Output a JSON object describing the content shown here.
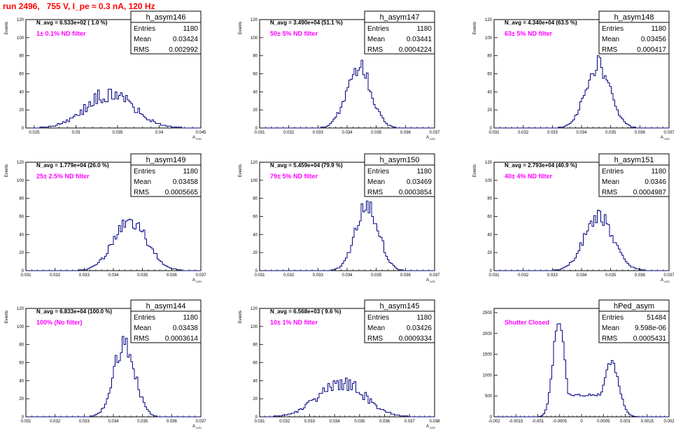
{
  "run_title": "run 2496,   755 V, I_pe ≈ 0.3 nA, 120 Hz",
  "colors": {
    "hist": "#000080",
    "title": "#ff0000",
    "filter": "#ff00ff",
    "axis": "#000000"
  },
  "stats_labels": {
    "entries": "Entries",
    "mean": "Mean",
    "rms": "RMS"
  },
  "chart_data": [
    {
      "type": "bar",
      "name": "h_asym146",
      "navg": "N_avg = 6.533e+02 ( 1.0 %)",
      "filter": "1± 0.1% ND filter",
      "entries": "1180",
      "mean": "0.03424",
      "rms": "0.002992",
      "xlabel": "A",
      "xlabel_sub": "LED",
      "ylabel": "Events",
      "xlim": [
        0.024,
        0.045
      ],
      "ylim": [
        0,
        120
      ],
      "xticks": [
        "0.025",
        "0.03",
        "0.035",
        "0.04",
        "0.045"
      ],
      "xtick_values": [
        0.025,
        0.03,
        0.035,
        0.04,
        0.045
      ],
      "yticks": [
        "0",
        "20",
        "40",
        "60",
        "80",
        "100",
        "120"
      ],
      "ytick_values": [
        0,
        20,
        40,
        60,
        80,
        100,
        120
      ],
      "peaks": [
        {
          "mu": 0.0341,
          "sigma": 0.0029,
          "amp": 38
        }
      ],
      "noise": 0.25,
      "seed": 146
    },
    {
      "type": "bar",
      "name": "h_asym147",
      "navg": "N_avg = 3.490e+04 (51.1 %)",
      "filter": "50± 5% ND filter",
      "entries": "1180",
      "mean": "0.03441",
      "rms": "0.0004224",
      "xlabel": "A",
      "xlabel_sub": "LED",
      "ylabel": "Events",
      "xlim": [
        0.031,
        0.037
      ],
      "ylim": [
        0,
        120
      ],
      "xticks": [
        "0.031",
        "0.032",
        "0.033",
        "0.034",
        "0.035",
        "0.036",
        "0.037"
      ],
      "xtick_values": [
        0.031,
        0.032,
        0.033,
        0.034,
        0.035,
        0.036,
        0.037
      ],
      "yticks": [
        "0",
        "20",
        "40",
        "60",
        "80",
        "100",
        "120"
      ],
      "ytick_values": [
        0,
        20,
        40,
        60,
        80,
        100,
        120
      ],
      "peaks": [
        {
          "mu": 0.0344,
          "sigma": 0.00042,
          "amp": 68
        }
      ],
      "noise": 0.15,
      "seed": 147
    },
    {
      "type": "bar",
      "name": "h_asym148",
      "navg": "N_avg = 4.340e+04 (63.5 %)",
      "filter": "63± 5% ND filter",
      "entries": "1180",
      "mean": "0.03456",
      "rms": "0.000417",
      "xlabel": "A",
      "xlabel_sub": "LED",
      "ylabel": "Events",
      "xlim": [
        0.031,
        0.037
      ],
      "ylim": [
        0,
        120
      ],
      "xticks": [
        "0.031",
        "0.032",
        "0.033",
        "0.034",
        "0.035",
        "0.036",
        "0.037"
      ],
      "xtick_values": [
        0.031,
        0.032,
        0.033,
        0.034,
        0.035,
        0.036,
        0.037
      ],
      "yticks": [
        "0",
        "20",
        "40",
        "60",
        "80",
        "100",
        "120"
      ],
      "ytick_values": [
        0,
        20,
        40,
        60,
        80,
        100,
        120
      ],
      "peaks": [
        {
          "mu": 0.03456,
          "sigma": 0.00042,
          "amp": 70
        }
      ],
      "noise": 0.15,
      "seed": 148
    },
    {
      "type": "bar",
      "name": "h_asym149",
      "navg": "N_avg = 1.779e+04 (26.0 %)",
      "filter": "25± 2.5% ND filter",
      "entries": "1180",
      "mean": "0.03458",
      "rms": "0.0005665",
      "xlabel": "A",
      "xlabel_sub": "LED",
      "ylabel": "Events",
      "xlim": [
        0.031,
        0.037
      ],
      "ylim": [
        0,
        120
      ],
      "xticks": [
        "0.031",
        "0.032",
        "0.033",
        "0.034",
        "0.035",
        "0.036",
        "0.037"
      ],
      "xtick_values": [
        0.031,
        0.032,
        0.033,
        0.034,
        0.035,
        0.036,
        0.037
      ],
      "yticks": [
        "0",
        "20",
        "40",
        "60",
        "80",
        "100",
        "120"
      ],
      "ytick_values": [
        0,
        20,
        40,
        60,
        80,
        100,
        120
      ],
      "peaks": [
        {
          "mu": 0.03458,
          "sigma": 0.00057,
          "amp": 55
        }
      ],
      "noise": 0.15,
      "seed": 149
    },
    {
      "type": "bar",
      "name": "h_asym150",
      "navg": "N_avg = 5.459e+04 (79.9 %)",
      "filter": "79± 5% ND filter",
      "entries": "1180",
      "mean": "0.03469",
      "rms": "0.0003854",
      "xlabel": "A",
      "xlabel_sub": "LED",
      "ylabel": "Events",
      "xlim": [
        0.031,
        0.037
      ],
      "ylim": [
        0,
        120
      ],
      "xticks": [
        "0.031",
        "0.032",
        "0.033",
        "0.034",
        "0.035",
        "0.036",
        "0.037"
      ],
      "xtick_values": [
        0.031,
        0.032,
        0.033,
        0.034,
        0.035,
        0.036,
        0.037
      ],
      "yticks": [
        "0",
        "20",
        "40",
        "60",
        "80",
        "100",
        "120"
      ],
      "ytick_values": [
        0,
        20,
        40,
        60,
        80,
        100,
        120
      ],
      "peaks": [
        {
          "mu": 0.03469,
          "sigma": 0.00039,
          "amp": 74
        }
      ],
      "noise": 0.15,
      "seed": 150
    },
    {
      "type": "bar",
      "name": "h_asym151",
      "navg": "N_avg = 2.793e+04 (40.9 %)",
      "filter": "40± 4% ND filter",
      "entries": "1180",
      "mean": "0.0346",
      "rms": "0.0004987",
      "xlabel": "A",
      "xlabel_sub": "LED",
      "ylabel": "Events",
      "xlim": [
        0.031,
        0.037
      ],
      "ylim": [
        0,
        120
      ],
      "xticks": [
        "0.031",
        "0.032",
        "0.033",
        "0.034",
        "0.035",
        "0.036",
        "0.037"
      ],
      "xtick_values": [
        0.031,
        0.032,
        0.033,
        0.034,
        0.035,
        0.036,
        0.037
      ],
      "yticks": [
        "0",
        "20",
        "40",
        "60",
        "80",
        "100",
        "120"
      ],
      "ytick_values": [
        0,
        20,
        40,
        60,
        80,
        100,
        120
      ],
      "peaks": [
        {
          "mu": 0.0346,
          "sigma": 0.0005,
          "amp": 60
        }
      ],
      "noise": 0.15,
      "seed": 151
    },
    {
      "type": "bar",
      "name": "h_asym144",
      "navg": "N_avg = 6.833e+04 (100.0 %)",
      "filter": "100% (No filter)",
      "entries": "1180",
      "mean": "0.03438",
      "rms": "0.0003614",
      "xlabel": "A",
      "xlabel_sub": "LED",
      "ylabel": "Events",
      "xlim": [
        0.031,
        0.037
      ],
      "ylim": [
        0,
        120
      ],
      "xticks": [
        "0.031",
        "0.032",
        "0.033",
        "0.034",
        "0.035",
        "0.036",
        "0.037"
      ],
      "xtick_values": [
        0.031,
        0.032,
        0.033,
        0.034,
        0.035,
        0.036,
        0.037
      ],
      "yticks": [
        "0",
        "20",
        "40",
        "60",
        "80",
        "100",
        "120"
      ],
      "ytick_values": [
        0,
        20,
        40,
        60,
        80,
        100,
        120
      ],
      "peaks": [
        {
          "mu": 0.03438,
          "sigma": 0.00036,
          "amp": 82
        }
      ],
      "noise": 0.15,
      "seed": 144
    },
    {
      "type": "bar",
      "name": "h_asym145",
      "navg": "N_avg = 6.568e+03 ( 9.6 %)",
      "filter": "10± 1% ND filter",
      "entries": "1180",
      "mean": "0.03426",
      "rms": "0.0009334",
      "xlabel": "A",
      "xlabel_sub": "LED",
      "ylabel": "Events",
      "xlim": [
        0.031,
        0.038
      ],
      "ylim": [
        0,
        120
      ],
      "xticks": [
        "0.031",
        "0.032",
        "0.033",
        "0.034",
        "0.035",
        "0.036",
        "0.037",
        "0.038"
      ],
      "xtick_values": [
        0.031,
        0.032,
        0.033,
        0.034,
        0.035,
        0.036,
        0.037,
        0.038
      ],
      "yticks": [
        "0",
        "20",
        "40",
        "60",
        "80",
        "100",
        "120"
      ],
      "ytick_values": [
        0,
        20,
        40,
        60,
        80,
        100,
        120
      ],
      "peaks": [
        {
          "mu": 0.03426,
          "sigma": 0.00093,
          "amp": 38
        }
      ],
      "noise": 0.22,
      "seed": 145
    },
    {
      "type": "bar",
      "name": "hPed_asym",
      "navg": "",
      "filter": "Shutter Closed",
      "entries": "51484",
      "mean": "9.598e-06",
      "rms": "0.0005431",
      "xlabel": "",
      "xlabel_sub": "",
      "ylabel": "",
      "xlim": [
        -0.002,
        0.002
      ],
      "ylim": [
        0,
        2600
      ],
      "xticks": [
        "-0.002",
        "-0.0015",
        "-0.001",
        "-0.0005",
        "0",
        "0.0005",
        "0.001",
        "0.0015",
        "0.002"
      ],
      "xtick_values": [
        -0.002,
        -0.0015,
        -0.001,
        -0.0005,
        0,
        0.0005,
        0.001,
        0.0015,
        0.002
      ],
      "yticks": [
        "0",
        "500",
        "1000",
        "1500",
        "2000",
        "2500"
      ],
      "ytick_values": [
        0,
        500,
        1000,
        1500,
        2000,
        2500
      ],
      "peaks": [
        {
          "mu": -0.00052,
          "sigma": 0.00013,
          "amp": 2300
        },
        {
          "mu": 0.00068,
          "sigma": 0.00017,
          "amp": 1300
        }
      ],
      "floor": 520,
      "noise": 0.06,
      "seed": 999
    }
  ]
}
